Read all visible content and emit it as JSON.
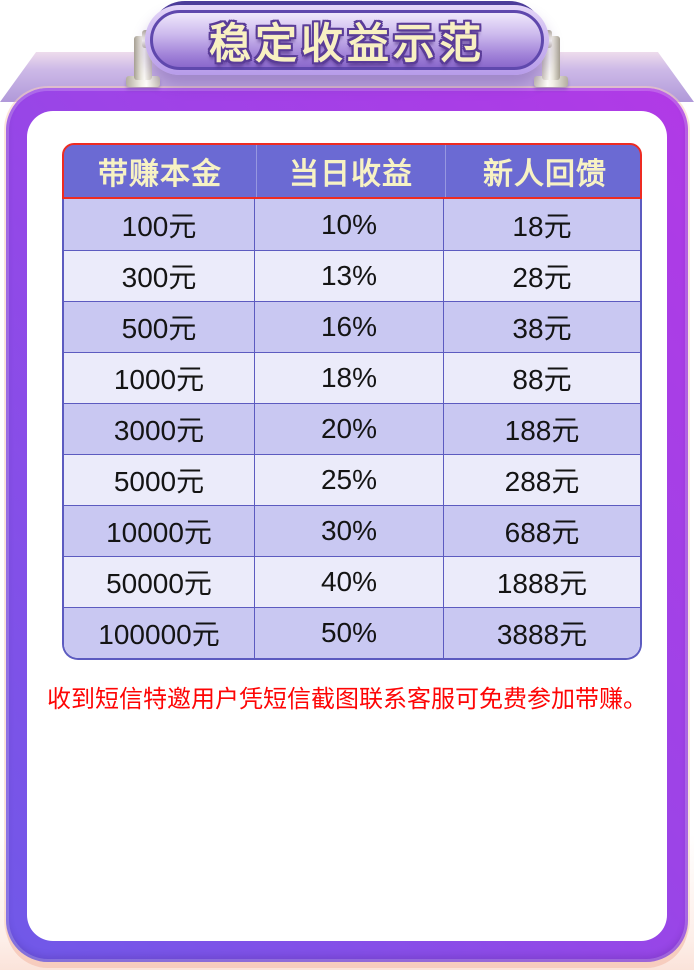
{
  "badge": {
    "title": "稳定收益示范"
  },
  "table": {
    "headers": [
      "带赚本金",
      "当日收益",
      "新人回馈"
    ],
    "rows": [
      [
        "100元",
        "10%",
        "18元"
      ],
      [
        "300元",
        "13%",
        "28元"
      ],
      [
        "500元",
        "16%",
        "38元"
      ],
      [
        "1000元",
        "18%",
        "88元"
      ],
      [
        "3000元",
        "20%",
        "188元"
      ],
      [
        "5000元",
        "25%",
        "288元"
      ],
      [
        "10000元",
        "30%",
        "688元"
      ],
      [
        "50000元",
        "40%",
        "1888元"
      ],
      [
        "100000元",
        "50%",
        "3888元"
      ]
    ]
  },
  "note": {
    "text": "收到短信特邀用户凭短信截图联系客服可免费参加带赚。"
  },
  "colors": {
    "frame-top": "#b13ae6",
    "frame-bottom": "#6f59e8",
    "header-bg": "#6b6ad3",
    "header-text": "#f7f2c4",
    "header-border": "#ee2b22",
    "row-odd": "#c9c8f2",
    "row-even": "#ebebfa",
    "cell-border": "#5c5bc0",
    "cell-text": "#141414",
    "note-text": "#fe0505",
    "badge-text": "#f8f0c2",
    "badge-outline": "#5a3c98"
  }
}
